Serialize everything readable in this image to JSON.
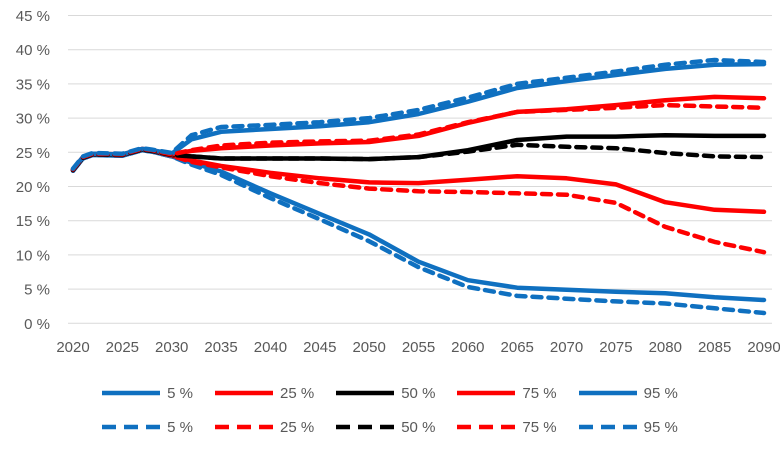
{
  "chart_data": {
    "type": "line",
    "title": "",
    "xlabel": "",
    "ylabel": "",
    "grid": "horizontal",
    "colors": {
      "blue": "#0F70C0",
      "red": "#FE0000",
      "black": "#000000",
      "gridline": "#D9D9D9",
      "axis_text": "#595959",
      "background": "#FFFFFF"
    },
    "x_axis": {
      "min": 2020,
      "max": 2090,
      "tick_step": 5,
      "tick_labels": [
        "2020",
        "2025",
        "2030",
        "2035",
        "2040",
        "2045",
        "2050",
        "2055",
        "2060",
        "2065",
        "2070",
        "2075",
        "2080",
        "2085",
        "2090"
      ]
    },
    "y_axis": {
      "min": 0,
      "max": 45,
      "tick_step": 5,
      "tick_labels": [
        "0 %",
        "5 %",
        "10 %",
        "15 %",
        "20 %",
        "25 %",
        "30 %",
        "35 %",
        "40 %",
        "45 %"
      ]
    },
    "x": [
      2020,
      2021,
      2022,
      2025,
      2027,
      2028,
      2030,
      2032,
      2035,
      2040,
      2045,
      2050,
      2055,
      2060,
      2065,
      2070,
      2075,
      2080,
      2085,
      2090
    ],
    "series": [
      {
        "name": "5 %",
        "style": "solid",
        "color": "#0F70C0",
        "values": [
          22.3,
          24.1,
          24.6,
          24.5,
          25.3,
          25.1,
          24.4,
          23.5,
          22.2,
          19.0,
          16.0,
          13.0,
          9.0,
          6.3,
          5.2,
          4.9,
          4.6,
          4.4,
          3.8,
          3.4
        ]
      },
      {
        "name": "25 %",
        "style": "solid",
        "color": "#FE0000",
        "values": [
          22.4,
          24.2,
          24.7,
          24.6,
          25.4,
          25.2,
          24.5,
          23.8,
          23.0,
          22.0,
          21.2,
          20.6,
          20.5,
          21.0,
          21.5,
          21.2,
          20.3,
          17.7,
          16.6,
          16.3
        ]
      },
      {
        "name": "50 %",
        "style": "solid",
        "color": "#000000",
        "values": [
          22.4,
          24.2,
          24.7,
          24.6,
          25.4,
          25.2,
          24.6,
          24.4,
          24.1,
          24.1,
          24.1,
          24.0,
          24.3,
          25.3,
          26.8,
          27.3,
          27.3,
          27.5,
          27.4,
          27.4
        ]
      },
      {
        "name": "75 %",
        "style": "solid",
        "color": "#FE0000",
        "values": [
          22.5,
          24.3,
          24.8,
          24.7,
          25.5,
          25.3,
          24.7,
          25.2,
          25.6,
          26.0,
          26.3,
          26.5,
          27.4,
          29.3,
          30.9,
          31.3,
          31.9,
          32.6,
          33.1,
          32.9
        ]
      },
      {
        "name": "95 %",
        "style": "solid",
        "color": "#0F70C0",
        "values": [
          22.5,
          24.3,
          24.8,
          24.7,
          25.5,
          25.3,
          24.8,
          26.9,
          28.0,
          28.4,
          28.8,
          29.4,
          30.6,
          32.4,
          34.4,
          35.4,
          36.3,
          37.2,
          37.8,
          37.9
        ]
      },
      {
        "name": "5 %",
        "style": "dashed",
        "color": "#0F70C0",
        "values": [
          22.3,
          24.1,
          24.6,
          24.5,
          25.3,
          25.1,
          24.4,
          23.2,
          21.7,
          18.3,
          15.2,
          12.0,
          8.2,
          5.3,
          4.0,
          3.6,
          3.2,
          2.9,
          2.2,
          1.5
        ]
      },
      {
        "name": "25 %",
        "style": "dashed",
        "color": "#FE0000",
        "values": [
          22.4,
          24.2,
          24.7,
          24.6,
          25.4,
          25.2,
          24.5,
          23.6,
          22.8,
          21.5,
          20.5,
          19.7,
          19.3,
          19.2,
          19.0,
          18.8,
          17.6,
          14.1,
          11.9,
          10.4
        ]
      },
      {
        "name": "50 %",
        "style": "dashed",
        "color": "#000000",
        "values": [
          22.4,
          24.2,
          24.7,
          24.6,
          25.4,
          25.2,
          24.6,
          24.4,
          24.1,
          24.1,
          24.1,
          24.0,
          24.3,
          25.1,
          26.1,
          25.8,
          25.6,
          24.9,
          24.4,
          24.3
        ]
      },
      {
        "name": "75 %",
        "style": "dashed",
        "color": "#FE0000",
        "values": [
          22.5,
          24.3,
          24.8,
          24.7,
          25.5,
          25.3,
          24.7,
          25.3,
          26.0,
          26.4,
          26.6,
          26.7,
          27.6,
          29.4,
          30.9,
          31.2,
          31.5,
          31.9,
          31.7,
          31.5
        ]
      },
      {
        "name": "95 %",
        "style": "dashed",
        "color": "#0F70C0",
        "values": [
          22.6,
          24.4,
          24.9,
          24.8,
          25.6,
          25.4,
          24.9,
          27.5,
          28.7,
          29.0,
          29.4,
          30.0,
          31.2,
          33.0,
          35.0,
          35.9,
          36.8,
          37.8,
          38.5,
          38.2
        ]
      }
    ],
    "legend": {
      "position": "bottom",
      "rows": [
        {
          "style": "solid",
          "items": [
            {
              "label": "5 %",
              "color": "#0F70C0"
            },
            {
              "label": "25 %",
              "color": "#FE0000"
            },
            {
              "label": "50 %",
              "color": "#000000"
            },
            {
              "label": "75 %",
              "color": "#FE0000"
            },
            {
              "label": "95 %",
              "color": "#0F70C0"
            }
          ]
        },
        {
          "style": "dashed",
          "items": [
            {
              "label": "5 %",
              "color": "#0F70C0"
            },
            {
              "label": "25 %",
              "color": "#FE0000"
            },
            {
              "label": "50 %",
              "color": "#000000"
            },
            {
              "label": "75 %",
              "color": "#FE0000"
            },
            {
              "label": "95 %",
              "color": "#0F70C0"
            }
          ]
        }
      ]
    }
  }
}
